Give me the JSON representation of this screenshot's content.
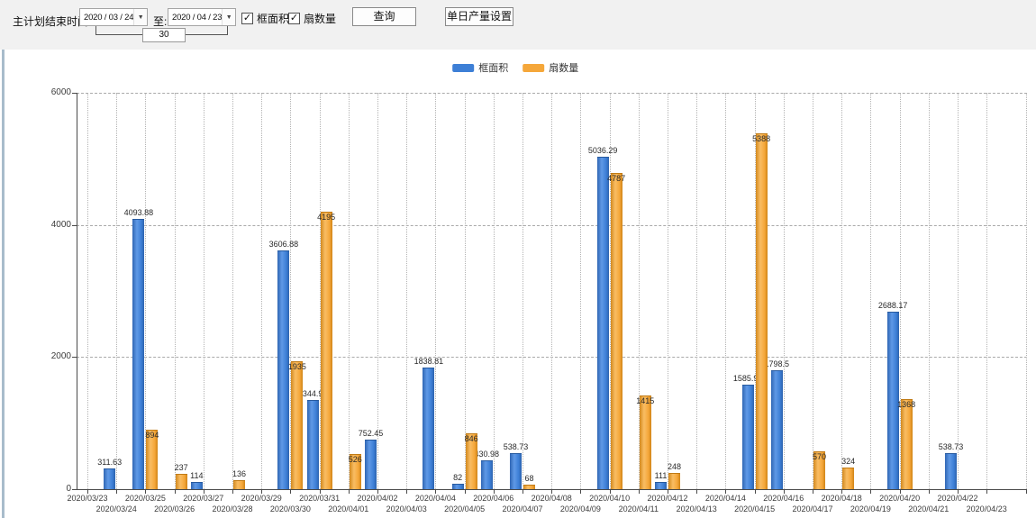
{
  "toolbar": {
    "label": "主计划结束时间:",
    "date_from": "2020 / 03 / 24",
    "to_label": "至:",
    "date_to": "2020 / 04 / 23",
    "span_days": "30",
    "check_mark": "✓",
    "checkbox_frame_area": "框面积",
    "checkbox_fan_count": "扇数量",
    "query_button": "查询",
    "daily_output_button": "单日产量设置",
    "dropdown_arrow": "▼"
  },
  "legend": {
    "items": [
      {
        "label": "框面积",
        "color": "#3d7fd6"
      },
      {
        "label": "扇数量",
        "color": "#f5a73a"
      }
    ]
  },
  "chart_data": {
    "type": "bar",
    "title": "",
    "xlabel": "",
    "ylabel": "",
    "ylim": [
      0,
      6000
    ],
    "yticks": [
      0,
      2000,
      4000,
      6000
    ],
    "grid": "horizontal dashed + vertical dotted",
    "legend_position": "top-center",
    "categories": [
      "2020/03/23",
      "2020/03/24",
      "2020/03/25",
      "2020/03/26",
      "2020/03/27",
      "2020/03/28",
      "2020/03/29",
      "2020/03/30",
      "2020/03/31",
      "2020/04/01",
      "2020/04/02",
      "2020/04/03",
      "2020/04/04",
      "2020/04/05",
      "2020/04/06",
      "2020/04/07",
      "2020/04/08",
      "2020/04/09",
      "2020/04/10",
      "2020/04/11",
      "2020/04/12",
      "2020/04/13",
      "2020/04/14",
      "2020/04/15",
      "2020/04/16",
      "2020/04/17",
      "2020/04/18",
      "2020/04/19",
      "2020/04/20",
      "2020/04/21",
      "2020/04/22",
      "2020/04/23"
    ],
    "series": [
      {
        "name": "框面积",
        "color": "#3d7fd6",
        "values": [
          null,
          311.63,
          4093.88,
          null,
          114,
          null,
          null,
          3606.88,
          1344.95,
          null,
          752.45,
          null,
          1838.81,
          82,
          430.98,
          538.73,
          null,
          null,
          5036.29,
          null,
          111,
          null,
          null,
          1585.96,
          1798.5,
          null,
          null,
          null,
          2688.17,
          null,
          538.73,
          null
        ]
      },
      {
        "name": "扇数量",
        "color": "#f5a73a",
        "values": [
          null,
          null,
          894,
          237,
          null,
          136,
          null,
          1935,
          4195,
          526,
          null,
          null,
          null,
          846,
          null,
          68,
          null,
          null,
          4787,
          1415,
          248,
          null,
          null,
          5388,
          null,
          570,
          324,
          null,
          1368,
          null,
          null,
          null
        ]
      }
    ]
  }
}
